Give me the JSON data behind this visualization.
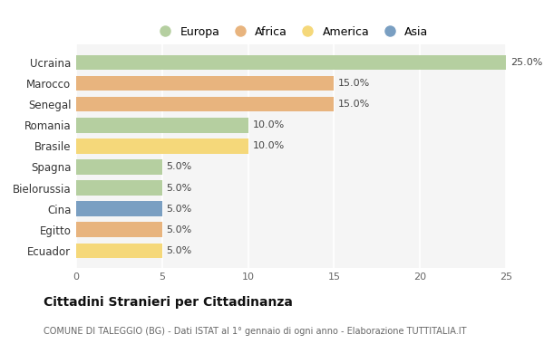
{
  "countries": [
    "Ucraina",
    "Marocco",
    "Senegal",
    "Romania",
    "Brasile",
    "Spagna",
    "Bielorussia",
    "Cina",
    "Egitto",
    "Ecuador"
  ],
  "values": [
    25.0,
    15.0,
    15.0,
    10.0,
    10.0,
    5.0,
    5.0,
    5.0,
    5.0,
    5.0
  ],
  "colors": [
    "#b5cfa0",
    "#e8b47e",
    "#e8b47e",
    "#b5cfa0",
    "#f5d87a",
    "#b5cfa0",
    "#b5cfa0",
    "#7a9fc2",
    "#e8b47e",
    "#f5d87a"
  ],
  "continent_labels": [
    "Europa",
    "Africa",
    "America",
    "Asia"
  ],
  "continent_colors": [
    "#b5cfa0",
    "#e8b47e",
    "#f5d87a",
    "#7a9fc2"
  ],
  "title": "Cittadini Stranieri per Cittadinanza",
  "subtitle": "COMUNE DI TALEGGIO (BG) - Dati ISTAT al 1° gennaio di ogni anno - Elaborazione TUTTITALIA.IT",
  "xlim": [
    0,
    25
  ],
  "xticks": [
    0,
    5,
    10,
    15,
    20,
    25
  ],
  "background_color": "#ffffff",
  "plot_bg_color": "#f5f5f5",
  "grid_color": "#ffffff"
}
